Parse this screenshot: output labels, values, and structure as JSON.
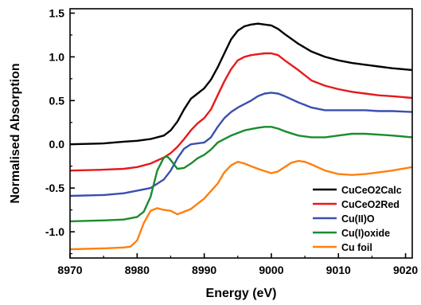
{
  "chart_data": {
    "type": "line",
    "xlabel": "Energy (eV)",
    "ylabel": "Normalised Absorption",
    "xlim": [
      8970,
      9021
    ],
    "ylim": [
      -1.3,
      1.55
    ],
    "xticks": [
      8970,
      8980,
      8990,
      9000,
      9010,
      9020
    ],
    "xtick_labels": [
      "8970",
      "8980",
      "8990",
      "9000",
      "9010",
      "9020"
    ],
    "yticks": [
      -1.0,
      -0.5,
      0.0,
      0.5,
      1.0,
      1.5
    ],
    "ytick_labels": [
      "-1.0",
      "-0.5",
      "0.0",
      "0.5",
      "1.0",
      "1.5"
    ],
    "grid": false,
    "legend_position": "bottom-right",
    "series": [
      {
        "name": "CuCeO2Calc",
        "color": "#000000",
        "x": [
          8970,
          8975,
          8978,
          8980,
          8982,
          8984,
          8985,
          8986,
          8987,
          8988,
          8989,
          8990,
          8991,
          8992,
          8993,
          8994,
          8995,
          8996,
          8997,
          8998,
          8999,
          9000,
          9001,
          9002,
          9004,
          9006,
          9008,
          9010,
          9012,
          9014,
          9016,
          9018,
          9021
        ],
        "y": [
          0.0,
          0.01,
          0.03,
          0.04,
          0.06,
          0.1,
          0.16,
          0.26,
          0.4,
          0.52,
          0.58,
          0.64,
          0.74,
          0.88,
          1.04,
          1.2,
          1.3,
          1.35,
          1.37,
          1.38,
          1.37,
          1.36,
          1.32,
          1.26,
          1.15,
          1.06,
          1.0,
          0.96,
          0.93,
          0.91,
          0.89,
          0.87,
          0.85
        ]
      },
      {
        "name": "CuCeO2Red",
        "color": "#e41a1c",
        "x": [
          8970,
          8975,
          8978,
          8980,
          8982,
          8984,
          8985,
          8986,
          8987,
          8988,
          8989,
          8990,
          8991,
          8992,
          8993,
          8994,
          8995,
          8996,
          8997,
          8998,
          8999,
          9000,
          9001,
          9002,
          9004,
          9006,
          9008,
          9010,
          9012,
          9014,
          9016,
          9018,
          9021
        ],
        "y": [
          -0.3,
          -0.29,
          -0.28,
          -0.26,
          -0.22,
          -0.15,
          -0.1,
          -0.03,
          0.06,
          0.16,
          0.24,
          0.3,
          0.4,
          0.56,
          0.72,
          0.86,
          0.96,
          1.0,
          1.02,
          1.03,
          1.04,
          1.04,
          1.02,
          0.96,
          0.85,
          0.73,
          0.67,
          0.63,
          0.6,
          0.58,
          0.56,
          0.55,
          0.53
        ]
      },
      {
        "name": "Cu(II)O",
        "color": "#3a4fb0",
        "x": [
          8970,
          8975,
          8978,
          8980,
          8982,
          8984,
          8985,
          8986,
          8987,
          8988,
          8989,
          8990,
          8991,
          8992,
          8993,
          8994,
          8995,
          8996,
          8997,
          8998,
          8999,
          9000,
          9001,
          9002,
          9004,
          9006,
          9008,
          9010,
          9012,
          9014,
          9016,
          9018,
          9021
        ],
        "y": [
          -0.59,
          -0.58,
          -0.56,
          -0.53,
          -0.5,
          -0.4,
          -0.3,
          -0.16,
          -0.05,
          0.0,
          0.01,
          0.02,
          0.08,
          0.2,
          0.3,
          0.37,
          0.42,
          0.46,
          0.5,
          0.55,
          0.58,
          0.59,
          0.58,
          0.55,
          0.48,
          0.42,
          0.39,
          0.39,
          0.39,
          0.39,
          0.38,
          0.38,
          0.37
        ]
      },
      {
        "name": "Cu(I)oxide",
        "color": "#1a8c2e",
        "x": [
          8970,
          8975,
          8978,
          8980,
          8981,
          8982,
          8983,
          8984,
          8984.5,
          8985,
          8986,
          8987,
          8988,
          8989,
          8990,
          8991,
          8992,
          8994,
          8996,
          8998,
          8999,
          9000,
          9001,
          9002,
          9004,
          9006,
          9008,
          9010,
          9012,
          9014,
          9016,
          9018,
          9021
        ],
        "y": [
          -0.88,
          -0.87,
          -0.86,
          -0.83,
          -0.77,
          -0.6,
          -0.3,
          -0.15,
          -0.14,
          -0.18,
          -0.28,
          -0.27,
          -0.22,
          -0.16,
          -0.12,
          -0.06,
          0.02,
          0.1,
          0.16,
          0.19,
          0.2,
          0.2,
          0.18,
          0.15,
          0.1,
          0.08,
          0.08,
          0.1,
          0.12,
          0.12,
          0.11,
          0.1,
          0.08
        ]
      },
      {
        "name": "Cu foil",
        "color": "#ff7f0e",
        "x": [
          8970,
          8975,
          8978,
          8979,
          8980,
          8981,
          8982,
          8983,
          8984,
          8985,
          8986,
          8988,
          8990,
          8992,
          8993,
          8994,
          8995,
          8996,
          8997,
          8998,
          9000,
          9001,
          9002,
          9003,
          9004,
          9005,
          9006,
          9008,
          9010,
          9012,
          9014,
          9016,
          9018,
          9021
        ],
        "y": [
          -1.2,
          -1.19,
          -1.18,
          -1.17,
          -1.1,
          -0.9,
          -0.76,
          -0.73,
          -0.75,
          -0.76,
          -0.8,
          -0.74,
          -0.62,
          -0.45,
          -0.32,
          -0.24,
          -0.2,
          -0.22,
          -0.25,
          -0.28,
          -0.33,
          -0.31,
          -0.26,
          -0.21,
          -0.19,
          -0.2,
          -0.23,
          -0.3,
          -0.34,
          -0.35,
          -0.34,
          -0.32,
          -0.3,
          -0.26
        ]
      }
    ]
  }
}
